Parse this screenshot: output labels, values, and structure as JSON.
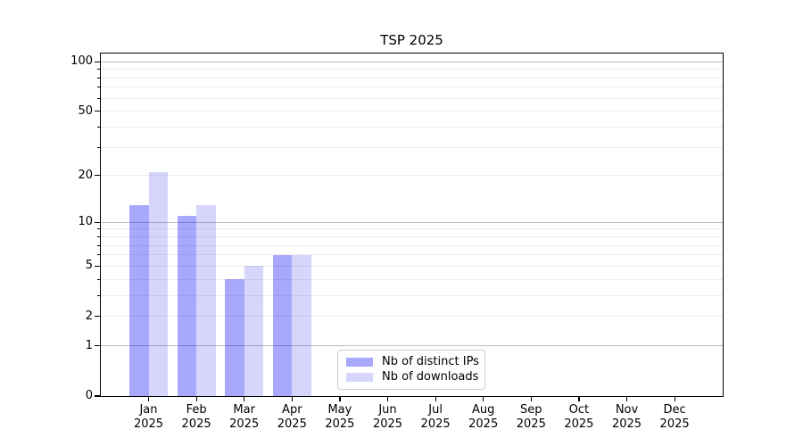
{
  "chart_data": {
    "type": "bar",
    "title": "TSP 2025",
    "categories": [
      "Jan",
      "Feb",
      "Mar",
      "Apr",
      "May",
      "Jun",
      "Jul",
      "Aug",
      "Sep",
      "Oct",
      "Nov",
      "Dec"
    ],
    "year_label": "2025",
    "series": [
      {
        "name": "Nb of distinct IPs",
        "color": "rgba(0,0,245,0.34)",
        "values": [
          13,
          11,
          4,
          6,
          0,
          0,
          0,
          0,
          0,
          0,
          0,
          0
        ]
      },
      {
        "name": "Nb of downloads",
        "color": "rgba(0,0,245,0.16)",
        "values": [
          21,
          13,
          5,
          6,
          0,
          0,
          0,
          0,
          0,
          0,
          0,
          0
        ]
      }
    ],
    "xlabel": "",
    "ylabel": "",
    "y_axis": {
      "scale": "log10(1+v)",
      "ylim": [
        0,
        112
      ],
      "tick_values": [
        0,
        1,
        2,
        5,
        10,
        20,
        50,
        100
      ],
      "major_grid_values": [
        1,
        10,
        100
      ],
      "minor_grid_values": [
        2,
        3,
        4,
        5,
        6,
        7,
        8,
        9,
        20,
        30,
        40,
        50,
        60,
        70,
        80,
        90
      ]
    },
    "grid": true,
    "legend_position": "lower center (inside axes)"
  },
  "colors": {
    "spine": "#000000",
    "major_grid": "#bdbdbd",
    "minor_grid": "#ececec",
    "legend_border": "#cccccc",
    "text": "#000000",
    "background": "#ffffff"
  }
}
